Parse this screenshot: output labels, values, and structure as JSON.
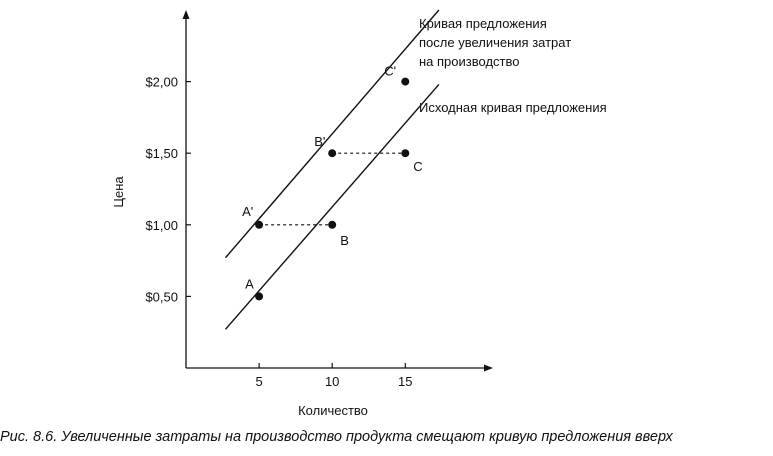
{
  "chart_data": {
    "type": "line",
    "xlabel": "Количество",
    "ylabel": "Цена",
    "x_ticks": [
      5,
      10,
      15
    ],
    "y_ticks": [
      0.5,
      1.0,
      1.5,
      2.0
    ],
    "y_tick_labels": [
      "$0,50",
      "$1,00",
      "$1,50",
      "$2,00"
    ],
    "xlim": [
      0,
      21
    ],
    "ylim": [
      0,
      2.5
    ],
    "grid": false,
    "series": [
      {
        "name": "Исходная кривая предложения",
        "line": [
          [
            2.7,
            0.27
          ],
          [
            17.3,
            1.98
          ]
        ],
        "points": [
          {
            "label": "A",
            "x": 5,
            "y": 0.5
          },
          {
            "label": "B",
            "x": 10,
            "y": 1.0
          },
          {
            "label": "C",
            "x": 15,
            "y": 1.5
          }
        ]
      },
      {
        "name": "Кривая предложения после увеличения затрат на производство",
        "line": [
          [
            2.7,
            0.77
          ],
          [
            17.3,
            2.5
          ]
        ],
        "points": [
          {
            "label": "A'",
            "x": 5,
            "y": 1.0
          },
          {
            "label": "B'",
            "x": 10,
            "y": 1.5
          },
          {
            "label": "C'",
            "x": 15,
            "y": 2.0
          }
        ]
      }
    ],
    "dashed_connectors": [
      {
        "from": [
          5,
          1.0
        ],
        "to": [
          10,
          1.0
        ]
      },
      {
        "from": [
          10,
          1.5
        ],
        "to": [
          15,
          1.5
        ]
      }
    ],
    "annotations": {
      "shifted_curve": [
        "Кривая предложения",
        "после увеличения затрат",
        "на производство"
      ],
      "original_curve": [
        "Исходная кривая предложения"
      ]
    }
  },
  "caption": "Рис. 8.6. Увеличенные затраты на производство продукта смещают кривую предложения вверх"
}
